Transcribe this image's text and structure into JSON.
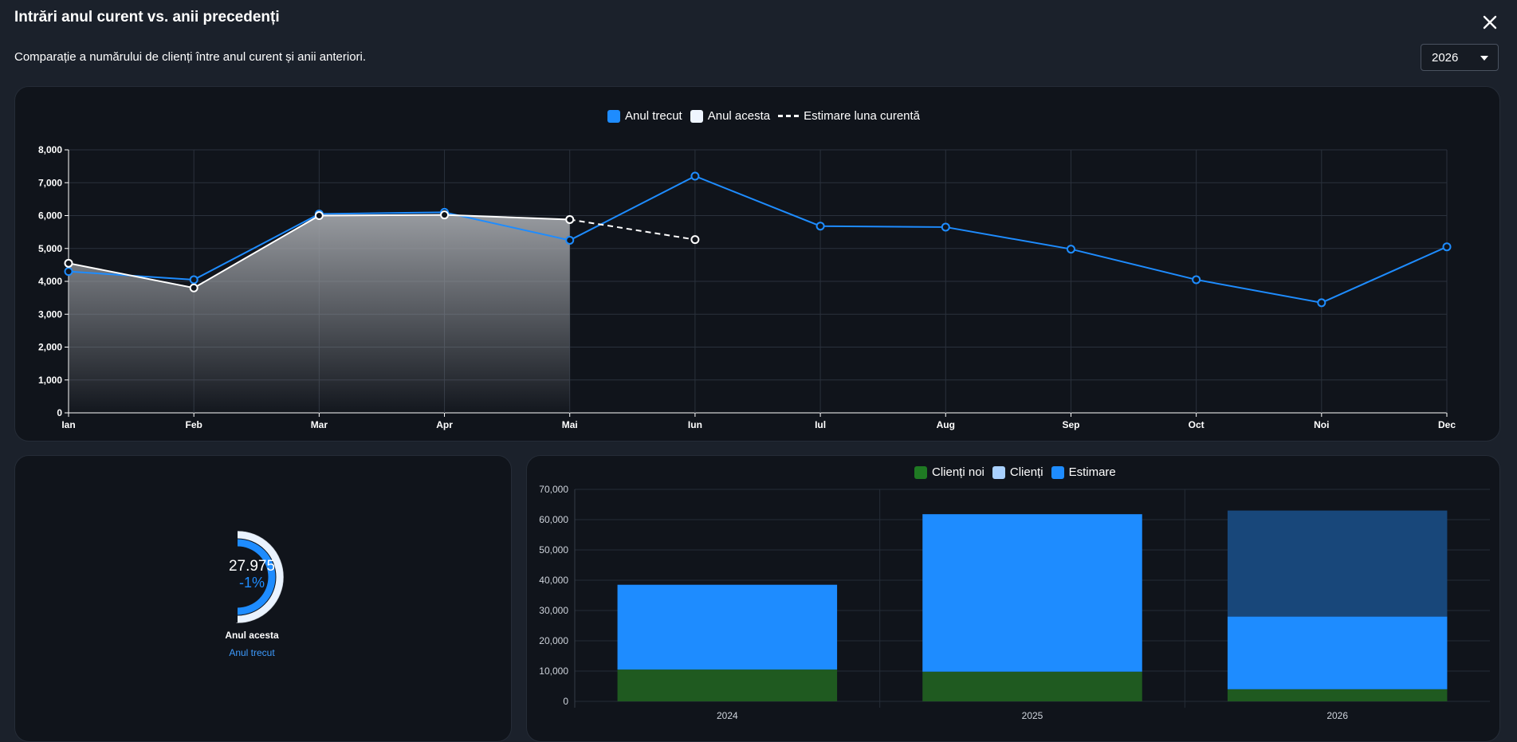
{
  "header": {
    "title": "Intrări anul curent vs. anii precedenți",
    "subtitle": "Comparație a numărului de clienți între anul curent și anii anteriori.",
    "close_icon": "close-icon"
  },
  "year_select": {
    "value": "2026"
  },
  "colors": {
    "last_year": "#1e8cff",
    "this_year": "#ffffff",
    "new_clients": "#1f5a20",
    "clients": "#a9d1ff",
    "estimate": "#1e8cff"
  },
  "line_chart": {
    "legend": [
      "Anul trecut",
      "Anul acesta",
      "Estimare luna curentă"
    ]
  },
  "bar_chart": {
    "legend": [
      "Clienți noi",
      "Clienți",
      "Estimare"
    ]
  },
  "donut": {
    "value": "27.975",
    "pct": "-1%",
    "label_this": "Anul acesta",
    "label_last": "Anul trecut",
    "this_fraction": 0.5,
    "last_fraction": 0.5
  },
  "chart_data": [
    {
      "type": "line",
      "categories": [
        "Ian",
        "Feb",
        "Mar",
        "Apr",
        "Mai",
        "Iun",
        "Iul",
        "Aug",
        "Sep",
        "Oct",
        "Noi",
        "Dec"
      ],
      "ylim": [
        0,
        8000
      ],
      "yticks": [
        "0",
        "1,000",
        "2,000",
        "3,000",
        "4,000",
        "5,000",
        "6,000",
        "7,000",
        "8,000"
      ],
      "legend_position": "top",
      "grid": true,
      "series": [
        {
          "name": "Anul trecut",
          "values": [
            4300,
            4050,
            6050,
            6100,
            5250,
            7200,
            5680,
            5650,
            4980,
            4050,
            3350,
            5050
          ]
        },
        {
          "name": "Anul acesta",
          "values": [
            4550,
            3800,
            6000,
            6020,
            5880,
            null,
            null,
            null,
            null,
            null,
            null,
            null
          ]
        },
        {
          "name": "Estimare luna curentă",
          "values": [
            null,
            null,
            null,
            null,
            5880,
            5270,
            null,
            null,
            null,
            null,
            null,
            null
          ]
        }
      ]
    },
    {
      "type": "bar",
      "stacked": true,
      "categories": [
        "2024",
        "2025",
        "2026"
      ],
      "ylim": [
        0,
        70000
      ],
      "yticks": [
        "0",
        "10,000",
        "20,000",
        "30,000",
        "40,000",
        "50,000",
        "60,000",
        "70,000"
      ],
      "legend_position": "top",
      "grid": true,
      "series": [
        {
          "name": "Clienți noi",
          "values": [
            10500,
            9800,
            4000
          ]
        },
        {
          "name": "Clienți",
          "values": [
            28000,
            52000,
            24000
          ]
        },
        {
          "name": "Estimare",
          "values": [
            0,
            0,
            35000
          ]
        }
      ]
    }
  ]
}
